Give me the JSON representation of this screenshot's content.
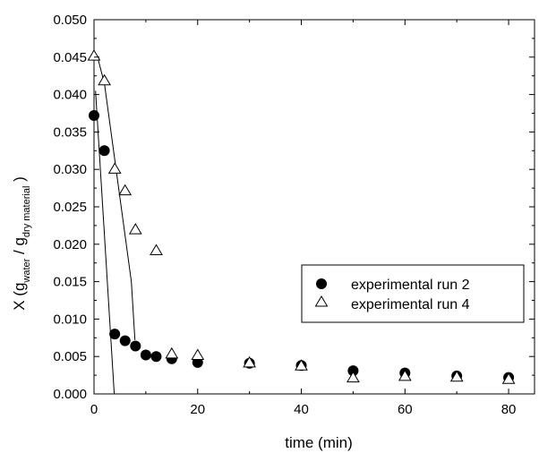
{
  "chart_data": {
    "type": "scatter",
    "xlabel": "time (min)",
    "ylabel": {
      "prefix": "X (g",
      "sub1": "water",
      "mid": " / g",
      "sub2": "dry material",
      "suffix": " )"
    },
    "xlim": [
      0,
      85
    ],
    "ylim": [
      0,
      0.05
    ],
    "x_ticks": [
      0,
      20,
      40,
      60,
      80
    ],
    "x_tick_labels": [
      "0",
      "20",
      "40",
      "60",
      "80"
    ],
    "y_ticks": [
      0,
      0.005,
      0.01,
      0.015,
      0.02,
      0.025,
      0.03,
      0.035,
      0.04,
      0.045,
      0.05
    ],
    "y_tick_labels": [
      "0.000",
      "0.005",
      "0.010",
      "0.015",
      "0.020",
      "0.025",
      "0.030",
      "0.035",
      "0.040",
      "0.045",
      "0.050"
    ],
    "grid": false,
    "legend_position": "right",
    "series": [
      {
        "name": "experimental run 2",
        "marker": "filled-circle",
        "color": "#000000",
        "x": [
          0,
          2,
          4,
          6,
          8,
          10,
          12,
          15,
          20,
          30,
          40,
          50,
          60,
          70,
          80
        ],
        "y": [
          0.0372,
          0.0325,
          0.008,
          0.0071,
          0.0064,
          0.0052,
          0.005,
          0.0047,
          0.0042,
          0.0041,
          0.0038,
          0.0031,
          0.0028,
          0.0024,
          0.0022
        ]
      },
      {
        "name": "experimental run 4",
        "marker": "open-triangle",
        "color": "#000000",
        "x": [
          0,
          2,
          4,
          6,
          8,
          12,
          15,
          20,
          30,
          40,
          50,
          60,
          70,
          80
        ],
        "y": [
          0.0452,
          0.0419,
          0.0301,
          0.0272,
          0.022,
          0.0192,
          0.0054,
          0.0052,
          0.0042,
          0.0038,
          0.0022,
          0.0024,
          0.0023,
          0.002
        ]
      }
    ],
    "fit_lines": [
      {
        "x": [
          0.3,
          3.9
        ],
        "y": [
          0.0405,
          0.0
        ]
      },
      {
        "x": [
          0.6,
          2.0,
          7.2,
          7.9
        ],
        "y": [
          0.0452,
          0.0415,
          0.015,
          0.0072
        ]
      }
    ]
  }
}
